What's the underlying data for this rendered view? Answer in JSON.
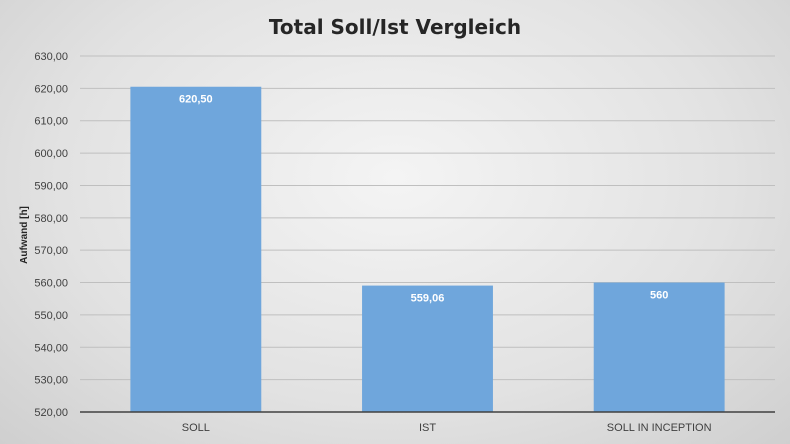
{
  "chart_data": {
    "type": "bar",
    "title": "Total Soll/Ist Vergleich",
    "xlabel": "",
    "ylabel": "Aufwand [h]",
    "categories": [
      "SOLL",
      "IST",
      "SOLL IN INCEPTION"
    ],
    "values": [
      620.5,
      559.06,
      560
    ],
    "data_labels": [
      "620,50",
      "559,06",
      "560"
    ],
    "ylim": [
      520,
      630
    ],
    "y_ticks": [
      "520,00",
      "530,00",
      "540,00",
      "550,00",
      "560,00",
      "570,00",
      "580,00",
      "590,00",
      "600,00",
      "610,00",
      "620,00",
      "630,00"
    ],
    "y_tick_values": [
      520,
      530,
      540,
      550,
      560,
      570,
      580,
      590,
      600,
      610,
      620,
      630
    ],
    "grid": true,
    "legend": "none",
    "bar_color": "#6fa6dc"
  }
}
